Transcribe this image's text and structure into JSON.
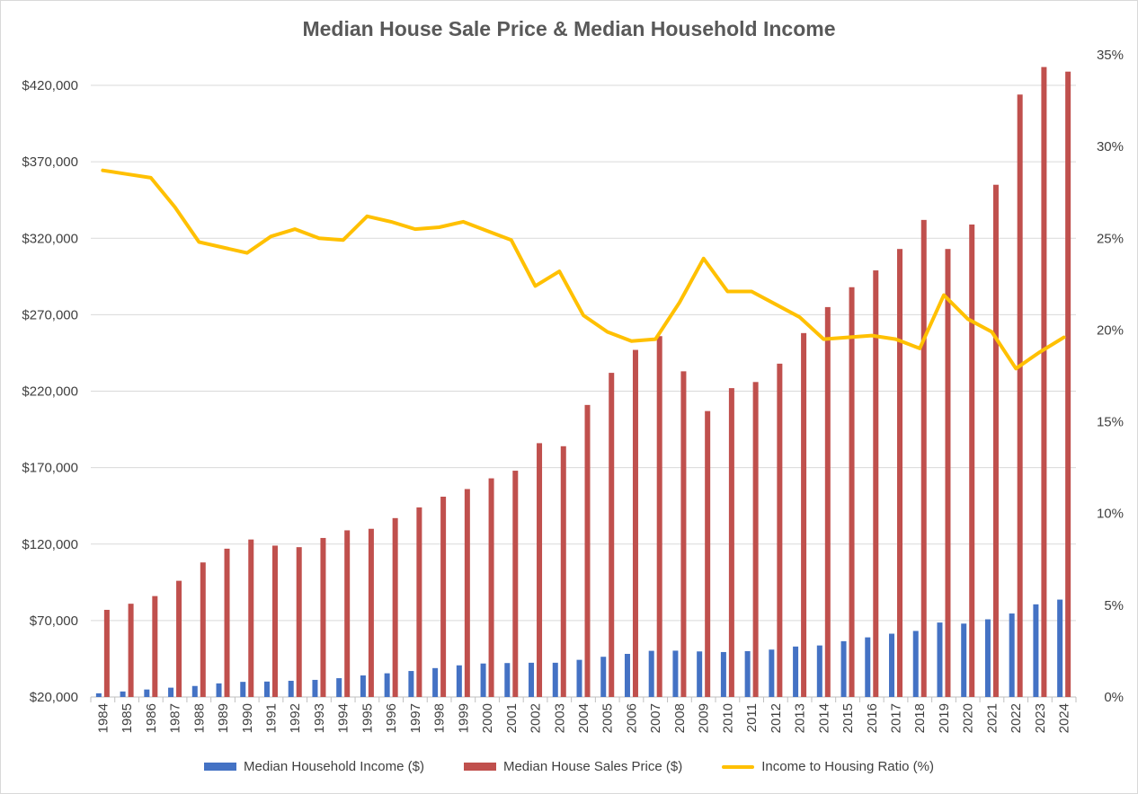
{
  "colors": {
    "income": "#4472C4",
    "price": "#C0504D",
    "ratio": "#FFC000",
    "grid": "#d9d9d9",
    "text": "#404040"
  },
  "chart_data": {
    "type": "bar",
    "title": "Median House Sale Price & Median Household Income",
    "xlabel": "",
    "ylabel": "",
    "categories": [
      "1984",
      "1985",
      "1986",
      "1987",
      "1988",
      "1989",
      "1990",
      "1991",
      "1992",
      "1993",
      "1994",
      "1995",
      "1996",
      "1997",
      "1998",
      "1999",
      "2000",
      "2001",
      "2002",
      "2003",
      "2004",
      "2005",
      "2006",
      "2007",
      "2008",
      "2009",
      "2010",
      "2011",
      "2012",
      "2013",
      "2014",
      "2015",
      "2016",
      "2017",
      "2018",
      "2019",
      "2020",
      "2021",
      "2022",
      "2023",
      "2024"
    ],
    "ylim": [
      20000,
      440000
    ],
    "y_ticks": [
      "$20,000",
      "$70,000",
      "$120,000",
      "$170,000",
      "$220,000",
      "$270,000",
      "$320,000",
      "$370,000",
      "$420,000"
    ],
    "y_tick_values": [
      20000,
      70000,
      120000,
      170000,
      220000,
      270000,
      320000,
      370000,
      420000
    ],
    "y2lim": [
      0,
      35
    ],
    "y2_ticks": [
      "0%",
      "5%",
      "10%",
      "15%",
      "20%",
      "25%",
      "30%",
      "35%"
    ],
    "y2_tick_values": [
      0,
      5,
      10,
      15,
      20,
      25,
      30,
      35
    ],
    "grid": true,
    "legend_position": "bottom",
    "series": [
      {
        "name": "Median Household Income ($)",
        "type": "bar",
        "axis": "left",
        "values": [
          22400,
          23600,
          24900,
          26100,
          27200,
          28900,
          29900,
          30100,
          30600,
          31200,
          32300,
          34100,
          35500,
          37000,
          38900,
          40700,
          41900,
          42200,
          42400,
          42400,
          44300,
          46300,
          48200,
          50200,
          50300,
          49800,
          49400,
          50000,
          51000,
          53000,
          53700,
          56500,
          59000,
          61400,
          63200,
          68700,
          68000,
          70800,
          74600,
          80600,
          83700
        ]
      },
      {
        "name": "Median House Sales Price ($)",
        "type": "bar",
        "axis": "left",
        "values": [
          77000,
          81000,
          86000,
          96000,
          108000,
          117000,
          123000,
          119000,
          118000,
          124000,
          129000,
          130000,
          137000,
          144000,
          151000,
          156000,
          163000,
          168000,
          186000,
          184000,
          211000,
          232000,
          247000,
          256000,
          233000,
          207000,
          222000,
          226000,
          238000,
          258000,
          275000,
          288000,
          299000,
          313000,
          332000,
          313000,
          329000,
          355000,
          414000,
          432000,
          429000
        ]
      },
      {
        "name": "Income to Housing Ratio (%)",
        "type": "line",
        "axis": "right",
        "values": [
          28.7,
          28.5,
          28.3,
          26.7,
          24.8,
          24.5,
          24.2,
          25.1,
          25.5,
          25.0,
          24.9,
          26.2,
          25.9,
          25.5,
          25.6,
          25.9,
          25.4,
          24.9,
          22.4,
          23.2,
          20.8,
          19.9,
          19.4,
          19.5,
          21.5,
          23.9,
          22.1,
          22.1,
          21.4,
          20.7,
          19.5,
          19.6,
          19.7,
          19.5,
          19.0,
          21.9,
          20.6,
          19.9,
          17.9,
          18.8,
          19.6
        ]
      }
    ]
  }
}
